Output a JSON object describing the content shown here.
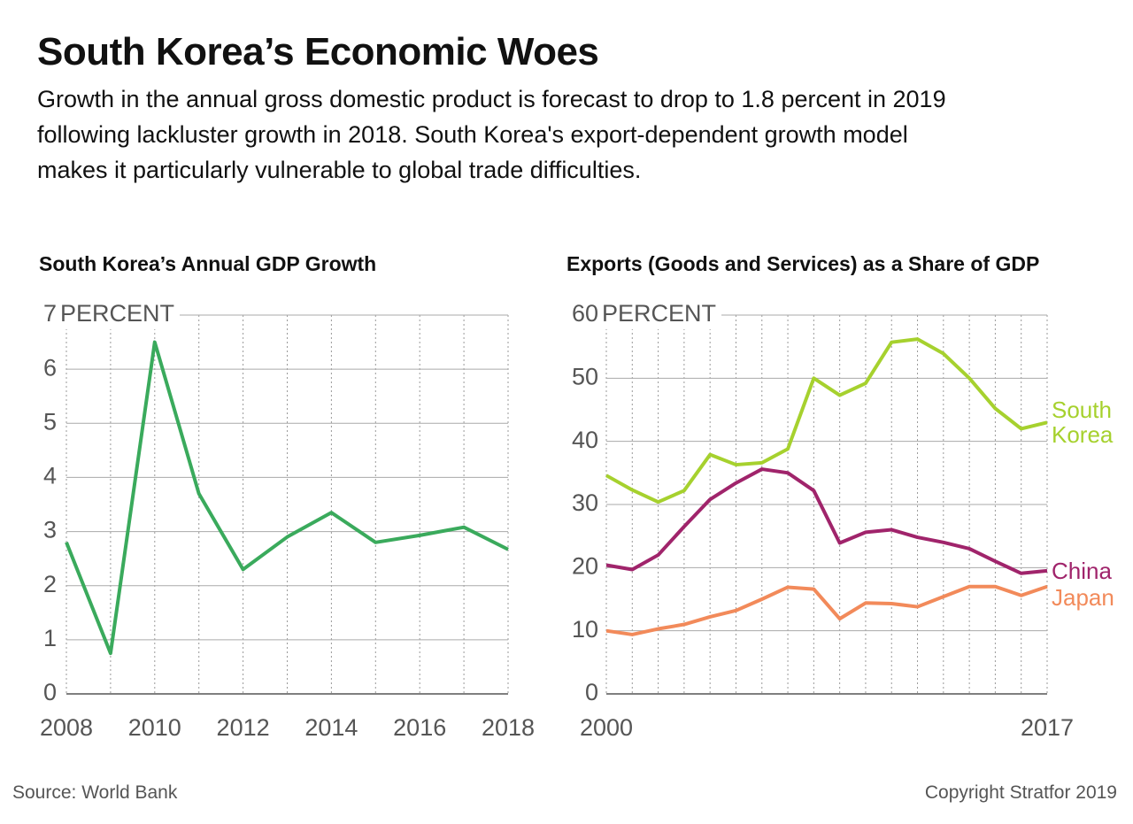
{
  "header": {
    "title": "South Korea’s Economic Woes",
    "subtitle": "Growth in the annual gross domestic product is forecast to drop to 1.8 percent in 2019 following lackluster growth in 2018. South Korea's export-dependent growth model makes it particularly vulnerable to global trade difficulties."
  },
  "chart_data": [
    {
      "type": "line",
      "title": "South Korea’s Annual GDP Growth",
      "ylabel": "PERCENT",
      "x": [
        2008,
        2009,
        2010,
        2011,
        2012,
        2013,
        2014,
        2015,
        2016,
        2017,
        2018
      ],
      "values": [
        2.8,
        0.75,
        6.5,
        3.7,
        2.3,
        2.9,
        3.35,
        2.8,
        2.93,
        3.08,
        2.67
      ],
      "color": "#3aaa5c",
      "xlim": [
        2008,
        2018
      ],
      "xticks": [
        2008,
        2010,
        2012,
        2014,
        2016,
        2018
      ],
      "ylim": [
        0,
        7
      ],
      "yticks": [
        0,
        1,
        2,
        3,
        4,
        5,
        6,
        7
      ],
      "grid": true
    },
    {
      "type": "line",
      "title": "Exports (Goods and Services) as a Share of GDP",
      "ylabel": "PERCENT",
      "x": [
        2000,
        2001,
        2002,
        2003,
        2004,
        2005,
        2006,
        2007,
        2008,
        2009,
        2010,
        2011,
        2012,
        2013,
        2014,
        2015,
        2016,
        2017
      ],
      "series": [
        {
          "name": "South Korea",
          "color": "#a6d12e",
          "values": [
            34.6,
            32.3,
            30.4,
            32.2,
            37.9,
            36.3,
            36.6,
            38.8,
            50.0,
            47.3,
            49.2,
            55.7,
            56.2,
            53.9,
            50.0,
            45.2,
            42.0,
            43.0
          ]
        },
        {
          "name": "China",
          "color": "#a0246b",
          "values": [
            20.4,
            19.7,
            22.0,
            26.5,
            30.8,
            33.4,
            35.6,
            35.0,
            32.2,
            23.9,
            25.6,
            26.0,
            24.8,
            24.0,
            23.0,
            21.0,
            19.1,
            19.5
          ]
        },
        {
          "name": "Japan",
          "color": "#f28a5a",
          "values": [
            10.0,
            9.4,
            10.3,
            11.0,
            12.2,
            13.2,
            15.0,
            16.9,
            16.6,
            11.9,
            14.4,
            14.3,
            13.8,
            15.4,
            17.0,
            17.0,
            15.6,
            17.0
          ]
        }
      ],
      "xlim": [
        2000,
        2017
      ],
      "xticks": [
        2000,
        2017
      ],
      "ylim": [
        0,
        60
      ],
      "yticks": [
        0,
        10,
        20,
        30,
        40,
        50,
        60
      ],
      "grid": true
    }
  ],
  "footer": {
    "source": "Source: World Bank",
    "copyright": "Copyright Stratfor 2019"
  }
}
